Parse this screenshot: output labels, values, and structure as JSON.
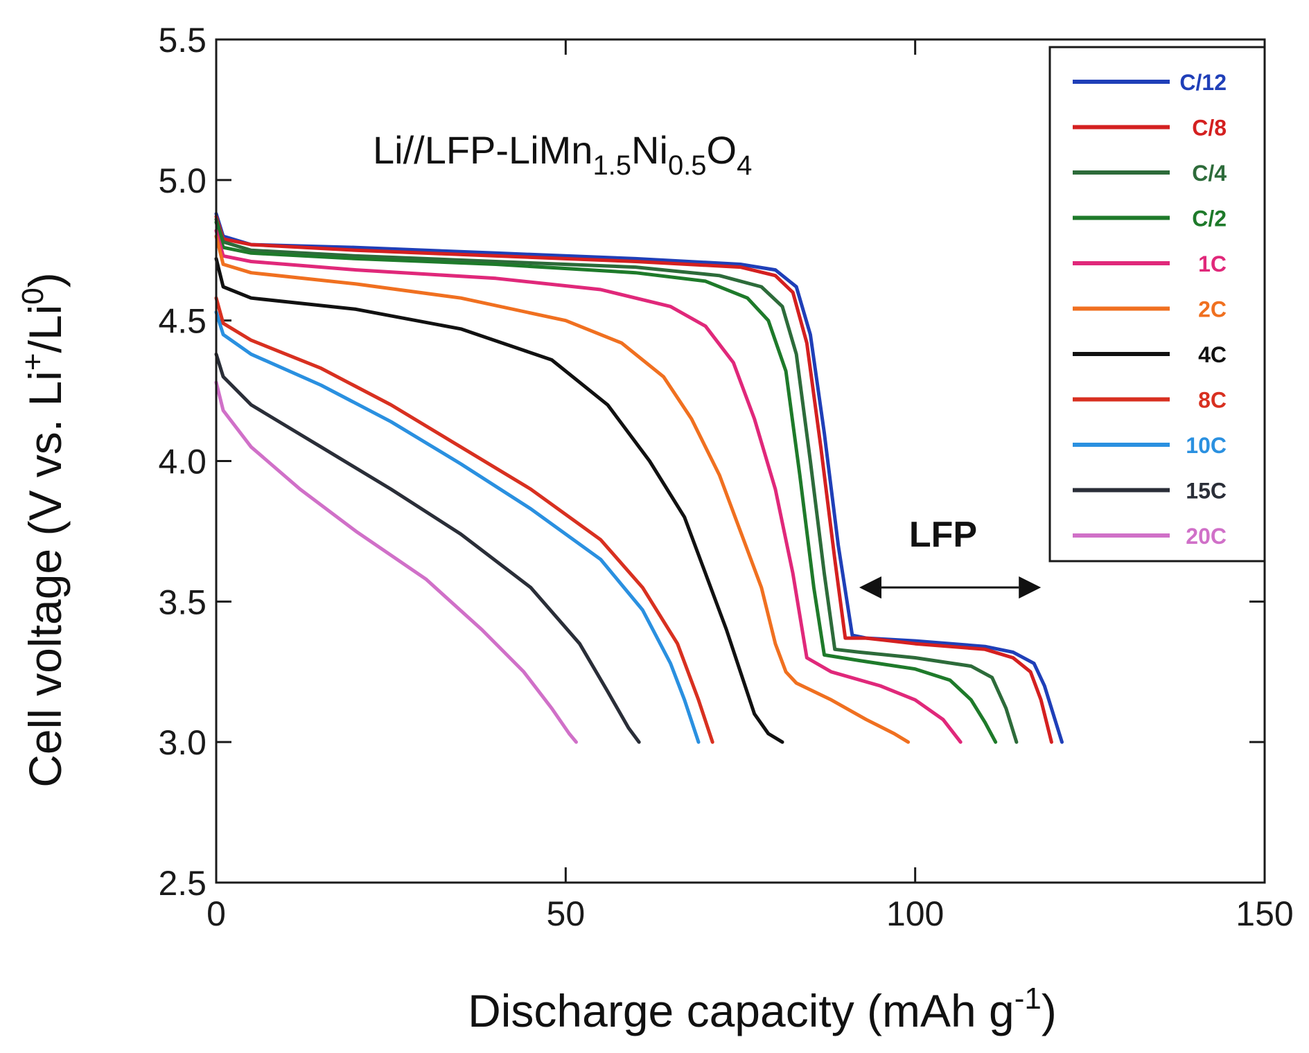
{
  "chart_data": {
    "type": "line",
    "title": {
      "base": "Li//LFP-LiMn",
      "sub1": "1.5",
      "mid": "Ni",
      "sub2": "0.5",
      "tail": "O",
      "sub3": "4"
    },
    "xlabel": {
      "base": "Discharge capacity (mAh g",
      "sup": "-1",
      "tail": ")"
    },
    "ylabel": {
      "base": "Cell voltage (V vs. Li",
      "sup1": "+",
      "mid": "/Li",
      "sup2": "0",
      "tail": ")"
    },
    "xlim": [
      0,
      150
    ],
    "ylim": [
      2.5,
      5.5
    ],
    "xticks": [
      0,
      50,
      100,
      150
    ],
    "xtick_labels": [
      "0",
      "50",
      "100",
      "150"
    ],
    "yticks": [
      2.5,
      3.0,
      3.5,
      4.0,
      4.5,
      5.0,
      5.5
    ],
    "ytick_labels": [
      "2.5",
      "3.0",
      "3.5",
      "4.0",
      "4.5",
      "5.0",
      "5.5"
    ],
    "legend_position": "top-right",
    "annotations": [
      {
        "text": "LFP",
        "arrow_from": [
          92,
          3.55
        ],
        "arrow_to": [
          118,
          3.55
        ],
        "label_at": [
          104,
          3.74
        ]
      }
    ],
    "series": [
      {
        "name": "C/12",
        "color": "#1f3fb8",
        "points": [
          [
            0,
            4.88
          ],
          [
            1,
            4.8
          ],
          [
            5,
            4.77
          ],
          [
            20,
            4.76
          ],
          [
            40,
            4.74
          ],
          [
            60,
            4.72
          ],
          [
            75,
            4.7
          ],
          [
            80,
            4.68
          ],
          [
            83,
            4.62
          ],
          [
            85,
            4.45
          ],
          [
            87,
            4.1
          ],
          [
            89,
            3.7
          ],
          [
            91,
            3.38
          ],
          [
            93,
            3.37
          ],
          [
            100,
            3.36
          ],
          [
            110,
            3.34
          ],
          [
            114,
            3.32
          ],
          [
            117,
            3.28
          ],
          [
            118.5,
            3.2
          ],
          [
            120,
            3.08
          ],
          [
            121,
            3.0
          ]
        ]
      },
      {
        "name": "C/8",
        "color": "#d42020",
        "points": [
          [
            0,
            4.87
          ],
          [
            1,
            4.79
          ],
          [
            5,
            4.77
          ],
          [
            20,
            4.75
          ],
          [
            40,
            4.73
          ],
          [
            60,
            4.71
          ],
          [
            75,
            4.69
          ],
          [
            80,
            4.66
          ],
          [
            82.5,
            4.6
          ],
          [
            84.5,
            4.42
          ],
          [
            86.5,
            4.05
          ],
          [
            88.5,
            3.65
          ],
          [
            90,
            3.37
          ],
          [
            93,
            3.37
          ],
          [
            100,
            3.35
          ],
          [
            110,
            3.33
          ],
          [
            114,
            3.3
          ],
          [
            116.5,
            3.25
          ],
          [
            118,
            3.15
          ],
          [
            119.5,
            3.0
          ]
        ]
      },
      {
        "name": "C/4",
        "color": "#2d6b3a",
        "points": [
          [
            0,
            4.86
          ],
          [
            1,
            4.78
          ],
          [
            5,
            4.75
          ],
          [
            20,
            4.73
          ],
          [
            40,
            4.71
          ],
          [
            60,
            4.69
          ],
          [
            72,
            4.66
          ],
          [
            78,
            4.62
          ],
          [
            81,
            4.55
          ],
          [
            83,
            4.38
          ],
          [
            85,
            4.0
          ],
          [
            87,
            3.6
          ],
          [
            88.5,
            3.33
          ],
          [
            92,
            3.32
          ],
          [
            100,
            3.3
          ],
          [
            108,
            3.27
          ],
          [
            111,
            3.23
          ],
          [
            113,
            3.12
          ],
          [
            114.5,
            3.0
          ]
        ]
      },
      {
        "name": "C/2",
        "color": "#1e7a2a",
        "points": [
          [
            0,
            4.85
          ],
          [
            1,
            4.76
          ],
          [
            5,
            4.74
          ],
          [
            20,
            4.72
          ],
          [
            40,
            4.7
          ],
          [
            60,
            4.67
          ],
          [
            70,
            4.64
          ],
          [
            76,
            4.58
          ],
          [
            79,
            4.5
          ],
          [
            81.5,
            4.32
          ],
          [
            83.5,
            3.95
          ],
          [
            85.5,
            3.55
          ],
          [
            87,
            3.31
          ],
          [
            92,
            3.29
          ],
          [
            100,
            3.26
          ],
          [
            105,
            3.22
          ],
          [
            108,
            3.15
          ],
          [
            110,
            3.07
          ],
          [
            111.5,
            3.0
          ]
        ]
      },
      {
        "name": "1C",
        "color": "#e0287a",
        "points": [
          [
            0,
            4.82
          ],
          [
            1,
            4.73
          ],
          [
            5,
            4.71
          ],
          [
            20,
            4.68
          ],
          [
            40,
            4.65
          ],
          [
            55,
            4.61
          ],
          [
            65,
            4.55
          ],
          [
            70,
            4.48
          ],
          [
            74,
            4.35
          ],
          [
            77,
            4.15
          ],
          [
            80,
            3.9
          ],
          [
            82.5,
            3.6
          ],
          [
            84.5,
            3.3
          ],
          [
            88,
            3.25
          ],
          [
            95,
            3.2
          ],
          [
            100,
            3.15
          ],
          [
            104,
            3.08
          ],
          [
            106.5,
            3.0
          ]
        ]
      },
      {
        "name": "2C",
        "color": "#f07020",
        "points": [
          [
            0,
            4.8
          ],
          [
            1,
            4.7
          ],
          [
            5,
            4.67
          ],
          [
            20,
            4.63
          ],
          [
            35,
            4.58
          ],
          [
            50,
            4.5
          ],
          [
            58,
            4.42
          ],
          [
            64,
            4.3
          ],
          [
            68,
            4.15
          ],
          [
            72,
            3.95
          ],
          [
            75,
            3.75
          ],
          [
            78,
            3.55
          ],
          [
            80,
            3.35
          ],
          [
            81.5,
            3.25
          ],
          [
            83,
            3.21
          ],
          [
            88,
            3.15
          ],
          [
            93,
            3.08
          ],
          [
            97,
            3.03
          ],
          [
            99,
            3.0
          ]
        ]
      },
      {
        "name": "4C",
        "color": "#111111",
        "points": [
          [
            0,
            4.72
          ],
          [
            1,
            4.62
          ],
          [
            5,
            4.58
          ],
          [
            20,
            4.54
          ],
          [
            35,
            4.47
          ],
          [
            48,
            4.36
          ],
          [
            56,
            4.2
          ],
          [
            62,
            4.0
          ],
          [
            67,
            3.8
          ],
          [
            70,
            3.6
          ],
          [
            73,
            3.4
          ],
          [
            75,
            3.25
          ],
          [
            77,
            3.1
          ],
          [
            79,
            3.03
          ],
          [
            81,
            3.0
          ]
        ]
      },
      {
        "name": "8C",
        "color": "#d83020",
        "points": [
          [
            0,
            4.58
          ],
          [
            1,
            4.49
          ],
          [
            5,
            4.43
          ],
          [
            15,
            4.33
          ],
          [
            25,
            4.2
          ],
          [
            35,
            4.05
          ],
          [
            45,
            3.9
          ],
          [
            55,
            3.72
          ],
          [
            61,
            3.55
          ],
          [
            66,
            3.35
          ],
          [
            69,
            3.15
          ],
          [
            71,
            3.0
          ]
        ]
      },
      {
        "name": "10C",
        "color": "#2a90e0",
        "points": [
          [
            0,
            4.53
          ],
          [
            1,
            4.45
          ],
          [
            5,
            4.38
          ],
          [
            15,
            4.27
          ],
          [
            25,
            4.14
          ],
          [
            35,
            3.99
          ],
          [
            45,
            3.83
          ],
          [
            55,
            3.65
          ],
          [
            61,
            3.47
          ],
          [
            65,
            3.28
          ],
          [
            67,
            3.15
          ],
          [
            69,
            3.0
          ]
        ]
      },
      {
        "name": "15C",
        "color": "#2a2e38",
        "points": [
          [
            0,
            4.38
          ],
          [
            1,
            4.3
          ],
          [
            5,
            4.2
          ],
          [
            15,
            4.05
          ],
          [
            25,
            3.9
          ],
          [
            35,
            3.74
          ],
          [
            45,
            3.55
          ],
          [
            52,
            3.35
          ],
          [
            56,
            3.18
          ],
          [
            59,
            3.05
          ],
          [
            60.5,
            3.0
          ]
        ]
      },
      {
        "name": "20C",
        "color": "#d070c8",
        "points": [
          [
            0,
            4.28
          ],
          [
            1,
            4.18
          ],
          [
            5,
            4.05
          ],
          [
            12,
            3.9
          ],
          [
            20,
            3.75
          ],
          [
            30,
            3.58
          ],
          [
            38,
            3.4
          ],
          [
            44,
            3.25
          ],
          [
            48,
            3.12
          ],
          [
            50.5,
            3.03
          ],
          [
            51.5,
            3.0
          ]
        ]
      }
    ]
  }
}
